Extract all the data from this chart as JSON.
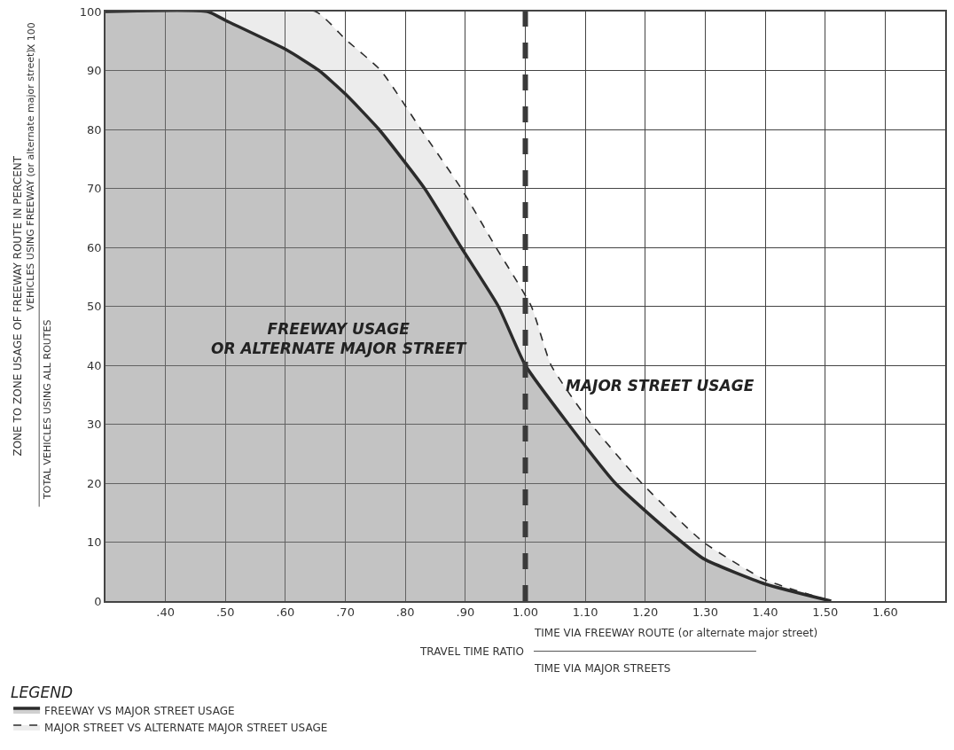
{
  "chart_data": {
    "type": "area",
    "xlabel": "TRAVEL TIME RATIO\nTIME VIA FREEWAY ROUTE (or alternate major street)\nTIME VIA MAJOR STREETS",
    "ylabel": "ZONE TO ZONE USAGE OF FREEWAY ROUTE IN PERCENT\nVEHICLES USING FREEWAY (or alternate major street)\nTOTAL VEHICLES USING ALL ROUTES\nX 100",
    "legend_title": "LEGEND",
    "annotations": [
      "FREEWAY USAGE\nOR ALTERNATE MAJOR STREET",
      "MAJOR STREET USAGE"
    ],
    "series": [
      {
        "name": "FREEWAY VS MAJOR STREET USAGE",
        "color": "#2b2b2b",
        "line_style": "solid",
        "x": [
          0.3,
          0.47,
          0.5,
          0.6,
          0.656,
          0.7,
          0.756,
          0.832,
          0.893,
          0.955,
          1.0,
          1.072,
          1.15,
          1.234,
          1.297,
          1.4,
          1.51
        ],
        "values": [
          100,
          100,
          98.5,
          93.6,
          90,
          86,
          80,
          70,
          60,
          50,
          40,
          30,
          20,
          12.3,
          7.2,
          2.9,
          0
        ]
      },
      {
        "name": "MAJOR STREET VS ALTERNATE MAJOR STREET USAGE",
        "color": "#2b2b2b",
        "line_style": "dashed",
        "x": [
          0.3,
          0.65,
          0.7,
          0.759,
          0.826,
          0.893,
          0.951,
          1.01,
          1.043,
          1.11,
          1.194,
          1.297,
          1.4,
          1.5
        ],
        "values": [
          100,
          100,
          95.3,
          90,
          80,
          70,
          60,
          50,
          40,
          30,
          20,
          10,
          3.6,
          0.3
        ]
      }
    ],
    "ref_lines": [
      {
        "axis": "x",
        "value": 1.0,
        "color": "#3a3a3a",
        "line_style": "dashed"
      }
    ],
    "xlim": [
      0.3,
      1.7
    ],
    "xticks": [
      {
        "value": 0.4,
        "label": ".40"
      },
      {
        "value": 0.5,
        "label": ".50"
      },
      {
        "value": 0.6,
        "label": ".60"
      },
      {
        "value": 0.7,
        "label": ".70"
      },
      {
        "value": 0.8,
        "label": ".80"
      },
      {
        "value": 0.9,
        "label": ".90"
      },
      {
        "value": 1.0,
        "label": "1.00"
      },
      {
        "value": 1.1,
        "label": "1.10"
      },
      {
        "value": 1.2,
        "label": "1.20"
      },
      {
        "value": 1.3,
        "label": "1.30"
      },
      {
        "value": 1.4,
        "label": "1.40"
      },
      {
        "value": 1.5,
        "label": "1.50"
      },
      {
        "value": 1.6,
        "label": "1.60"
      }
    ],
    "ylim": [
      0,
      100
    ],
    "yticks": [
      0,
      10,
      20,
      30,
      40,
      50,
      60,
      70,
      80,
      90,
      100
    ],
    "grid": true,
    "legend": "bottom left",
    "marker": "none"
  }
}
